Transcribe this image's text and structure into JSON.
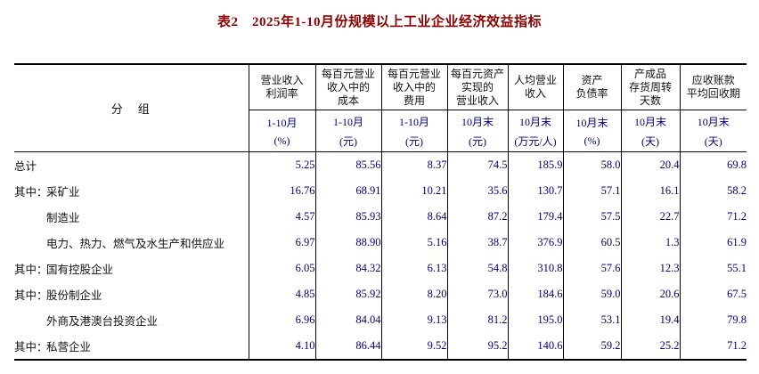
{
  "title": "表2　2025年1-10月份规模以上工业企业经济效益指标",
  "colors": {
    "title": "#8b0000",
    "numbers": "#000080",
    "labels": "#111111",
    "lines": "#000000"
  },
  "table": {
    "group_header": "分　组",
    "columns": [
      {
        "name": "营业收入\n利润率",
        "period": "1-10月",
        "unit": "(%)"
      },
      {
        "name": "每百元营业\n收入中的\n成本",
        "period": "1-10月",
        "unit": "(元)"
      },
      {
        "name": "每百元营业\n收入中的\n费用",
        "period": "1-10月",
        "unit": "(元)"
      },
      {
        "name": "每百元资产\n实现的\n营业收入",
        "period": "10月末",
        "unit": "(元)"
      },
      {
        "name": "人均营业\n收入",
        "period": "10月末",
        "unit": "(万元/人)"
      },
      {
        "name": "资产\n负债率",
        "period": "10月末",
        "unit": "(%)"
      },
      {
        "name": "产成品\n存货周转\n天数",
        "period": "10月末",
        "unit": "(天)"
      },
      {
        "name": "应收账款\n平均回收期",
        "period": "10月末",
        "unit": "(天)"
      }
    ],
    "rows": [
      {
        "prefix": "",
        "indent": false,
        "label": "总计",
        "values": [
          "5.25",
          "85.56",
          "8.37",
          "74.5",
          "185.9",
          "58.0",
          "20.4",
          "69.8"
        ]
      },
      {
        "prefix": "其中：",
        "indent": false,
        "label": "采矿业",
        "values": [
          "16.76",
          "68.91",
          "10.21",
          "35.6",
          "130.7",
          "57.1",
          "16.1",
          "58.2"
        ]
      },
      {
        "prefix": "",
        "indent": true,
        "label": "制造业",
        "values": [
          "4.57",
          "85.93",
          "8.64",
          "87.2",
          "179.4",
          "57.5",
          "22.7",
          "71.2"
        ]
      },
      {
        "prefix": "",
        "indent": true,
        "label": "电力、热力、燃气及水生产和供应业",
        "values": [
          "6.97",
          "88.90",
          "5.16",
          "38.7",
          "376.9",
          "60.5",
          "1.3",
          "61.9"
        ]
      },
      {
        "prefix": "其中：",
        "indent": false,
        "label": "国有控股企业",
        "values": [
          "6.05",
          "84.32",
          "6.13",
          "54.8",
          "310.8",
          "57.6",
          "12.3",
          "55.1"
        ]
      },
      {
        "prefix": "其中：",
        "indent": false,
        "label": "股份制企业",
        "values": [
          "4.85",
          "85.92",
          "8.20",
          "73.0",
          "184.6",
          "59.0",
          "20.6",
          "67.5"
        ]
      },
      {
        "prefix": "",
        "indent": true,
        "label": "外商及港澳台投资企业",
        "values": [
          "6.96",
          "84.04",
          "9.13",
          "81.2",
          "195.0",
          "53.1",
          "19.4",
          "79.8"
        ]
      },
      {
        "prefix": "其中：",
        "indent": false,
        "label": "私营企业",
        "values": [
          "4.10",
          "86.44",
          "9.52",
          "95.2",
          "140.6",
          "59.2",
          "25.2",
          "71.2"
        ]
      }
    ]
  }
}
